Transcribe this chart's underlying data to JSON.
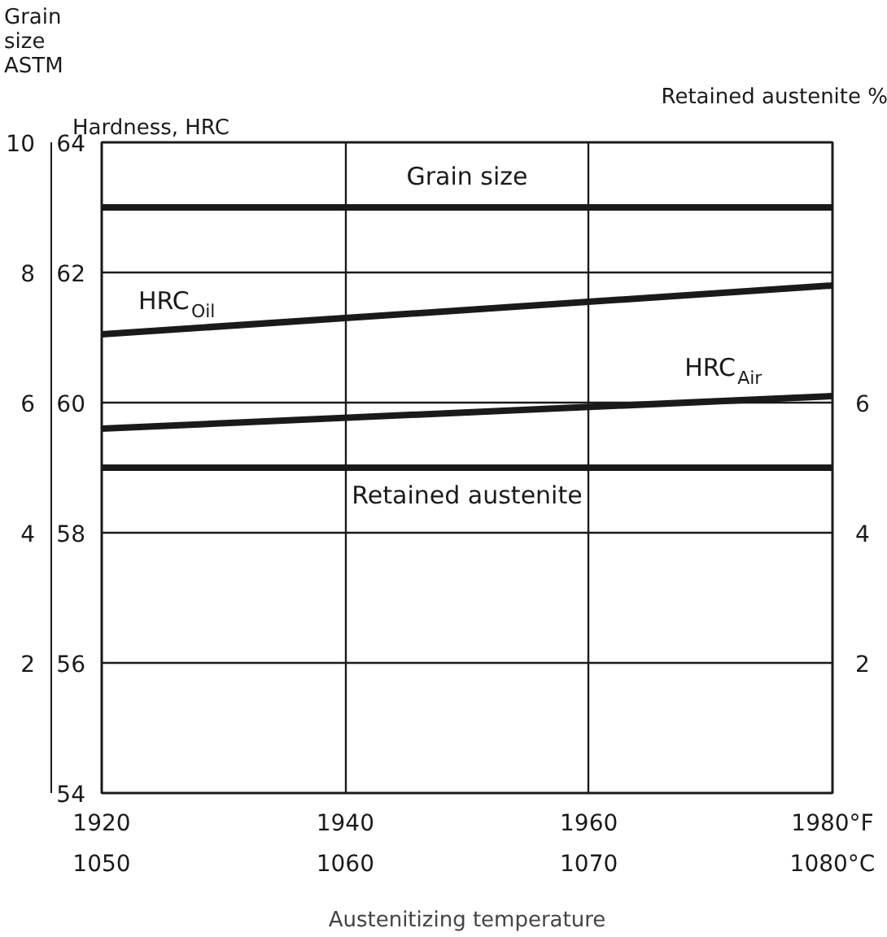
{
  "chart_data": {
    "type": "line",
    "xlabel": "Austenitizing temperature",
    "ylabel": "Hardness, HRC",
    "y2label": "Grain size ASTM",
    "y3label": "Retained austenite %",
    "xlim": [
      1920,
      1980
    ],
    "xticks": [
      1920,
      1940,
      1960,
      {
        "value": 1980,
        "label": "1980°F"
      }
    ],
    "x2lim": [
      1050,
      1080
    ],
    "x2ticks": [
      1050,
      1060,
      1070,
      {
        "value": 1080,
        "label": "1080°C"
      }
    ],
    "ylim": [
      54,
      64
    ],
    "yticks": [
      54,
      56,
      58,
      60,
      62,
      64
    ],
    "y2lim": [
      0,
      10
    ],
    "y2ticks": [
      2,
      4,
      6,
      8,
      10
    ],
    "y3lim": [
      0,
      10
    ],
    "y3ticks": [
      2,
      4,
      6
    ],
    "grid": true,
    "x": [
      1920,
      1980
    ],
    "marker": "none",
    "line_style": "solid",
    "series": [
      {
        "name": "Grain size",
        "color": "#1a1a1a",
        "axis": "y2",
        "values": [
          9.0,
          9.0
        ]
      },
      {
        "name": "HRC$_{Oil}$",
        "color": "#1a1a1a",
        "values": [
          61.05,
          61.8
        ]
      },
      {
        "name": "HRC$_{Air}$",
        "color": "#1a1a1a",
        "values": [
          59.6,
          60.1
        ]
      },
      {
        "name": "Retained austenite",
        "color": "#1a1a1a",
        "axis": "y3",
        "values": [
          5.0,
          5.0
        ]
      }
    ]
  }
}
